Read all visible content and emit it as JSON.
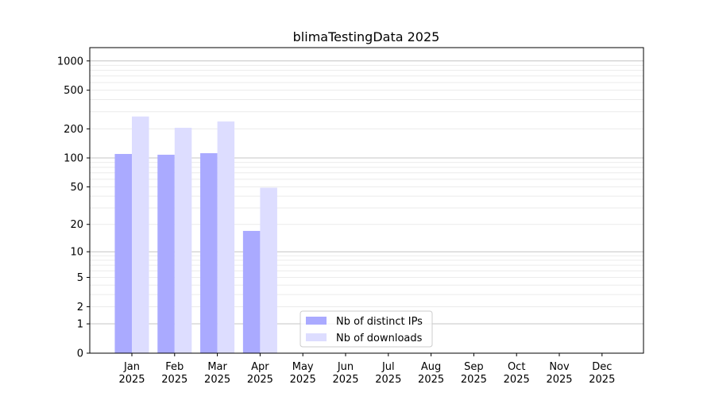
{
  "chart_data": {
    "type": "bar",
    "title": "blimaTestingData 2025",
    "xlabel": "",
    "ylabel": "",
    "yscale": "log(y+1)",
    "ylim": [
      0,
      1370
    ],
    "yticks": [
      0,
      1,
      2,
      5,
      10,
      20,
      50,
      100,
      200,
      500,
      1000
    ],
    "grid": true,
    "categories": [
      "Jan\n2025",
      "Feb\n2025",
      "Mar\n2025",
      "Apr\n2025",
      "May\n2025",
      "Jun\n2025",
      "Jul\n2025",
      "Aug\n2025",
      "Sep\n2025",
      "Oct\n2025",
      "Nov\n2025",
      "Dec\n2025"
    ],
    "series": [
      {
        "name": "Nb of distinct IPs",
        "color": "#aaaaff",
        "values": [
          110,
          108,
          112,
          17,
          0,
          0,
          0,
          0,
          0,
          0,
          0,
          0
        ]
      },
      {
        "name": "Nb of downloads",
        "color": "#ddddff",
        "values": [
          268,
          205,
          238,
          49,
          0,
          0,
          0,
          0,
          0,
          0,
          0,
          0
        ]
      }
    ],
    "legend": "bottom-center"
  }
}
